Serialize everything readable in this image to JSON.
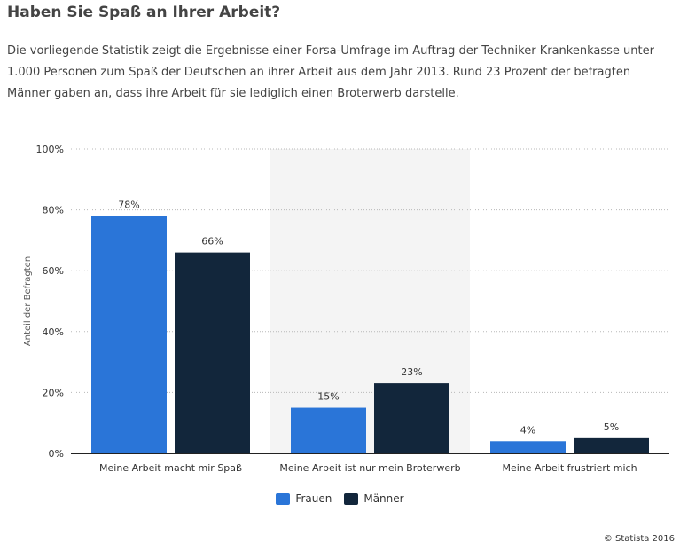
{
  "title": "Haben Sie Spaß an Ihrer Arbeit?",
  "description": "Die vorliegende Statistik zeigt die Ergebnisse einer Forsa-Umfrage im Auftrag der Techniker Krankenkasse unter 1.000 Personen zum Spaß der Deutschen an ihrer Arbeit aus dem Jahr 2013. Rund 23 Prozent der befragten Männer gaben an, dass ihre Arbeit für sie lediglich einen Broterwerb darstelle.",
  "credit": "© Statista 2016",
  "colors": {
    "frauen": "#2a75d8",
    "maenner": "#12263b",
    "highlight_band": "#f4f4f4",
    "grid": "#b8b8b8"
  },
  "chart_data": {
    "type": "bar",
    "categories": [
      "Meine Arbeit macht mir Spaß",
      "Meine Arbeit ist nur mein Broterwerb",
      "Meine Arbeit frustriert mich"
    ],
    "series": [
      {
        "name": "Frauen",
        "values": [
          78,
          15,
          4
        ],
        "labels": [
          "78%",
          "15%",
          "4%"
        ]
      },
      {
        "name": "Männer",
        "values": [
          66,
          23,
          5
        ],
        "labels": [
          "66%",
          "23%",
          "5%"
        ]
      }
    ],
    "ylabel": "Anteil der Befragten",
    "ylim": [
      0,
      100
    ],
    "yticks": [
      0,
      20,
      40,
      60,
      80,
      100
    ],
    "ytick_labels": [
      "0%",
      "20%",
      "40%",
      "60%",
      "80%",
      "100%"
    ],
    "grid": true,
    "legend": "bottom-center"
  }
}
